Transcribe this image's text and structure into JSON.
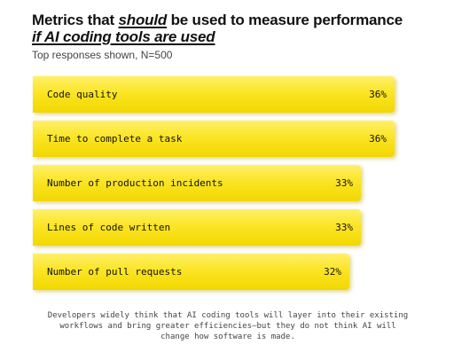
{
  "title": {
    "part1": "Metrics that ",
    "emphasis": "should",
    "part2": " be used to measure performance",
    "line2": "if AI coding tools are used"
  },
  "subtitle": "Top responses shown, N=500",
  "footnote": "Developers widely think that AI coding tools will layer into their existing workflows and bring greater efficiencies—but they do not think AI will change how software is made.",
  "colors": {
    "bar": "#f7df10",
    "text": "#111111"
  },
  "chart_data": {
    "type": "bar",
    "orientation": "horizontal",
    "categories": [
      "Code quality",
      "Time to complete a task",
      "Number of production incidents",
      "Lines of code written",
      "Number of pull requests"
    ],
    "values": [
      36,
      36,
      33,
      33,
      32
    ],
    "value_labels": [
      "36%",
      "36%",
      "33%",
      "33%",
      "32%"
    ],
    "unit": "%",
    "title": "Metrics that should be used to measure performance if AI coding tools are used",
    "subtitle": "Top responses shown, N=500",
    "xlabel": "",
    "ylabel": "",
    "grid": false,
    "legend": "none"
  }
}
